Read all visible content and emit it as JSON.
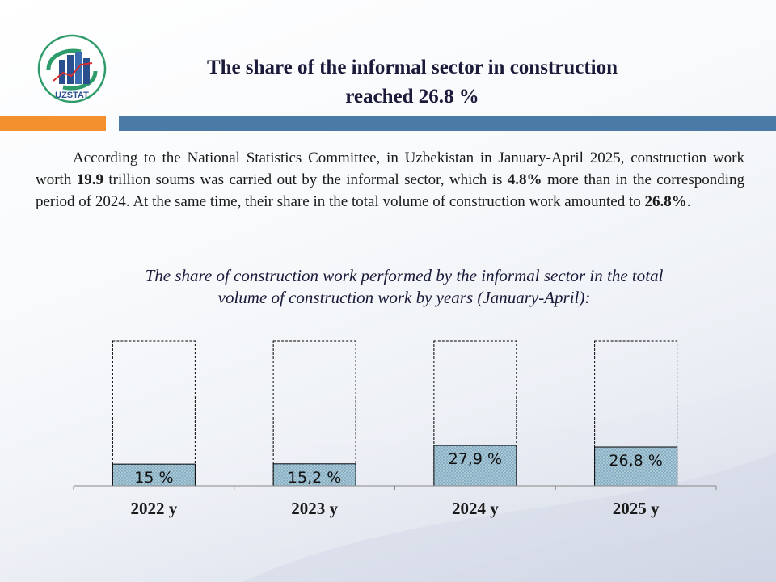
{
  "header": {
    "logo_text": "UZSTAT",
    "title_line1": "The share of the informal sector in construction",
    "title_line2": "reached 26.8 %"
  },
  "intro": {
    "p1": "According to the National Statistics Committee, in Uzbekistan in January-April 2025, construction work worth ",
    "b1": "19.9",
    "p2": " trillion soums was carried out by the informal sector, which is ",
    "b2": "4.8%",
    "p3": " more than in the corresponding period of 2024. At the same time, their share in the total volume of construction work amounted to ",
    "b3": "26.8%",
    "p4": "."
  },
  "chart_data": {
    "type": "bar",
    "title": "The share of construction work performed by the informal sector in the total volume of construction work by years (January-April):",
    "title_line1": "The share of construction work performed by the informal sector in the total",
    "title_line2": "volume of construction work by years (January-April):",
    "categories": [
      "2022 y",
      "2023 y",
      "2024 y",
      "2025 y"
    ],
    "values": [
      15.0,
      15.2,
      27.9,
      26.8
    ],
    "value_labels": [
      "15 %",
      "15,2 %",
      "27,9 %",
      "26,8 %"
    ],
    "ylim": [
      0,
      100
    ],
    "xlabel": "",
    "ylabel": ""
  },
  "colors": {
    "accent_orange": "#f2912e",
    "accent_blue": "#4a7ba7",
    "bar_fill": "#a7c6d6",
    "bar_outline": "#000000"
  }
}
